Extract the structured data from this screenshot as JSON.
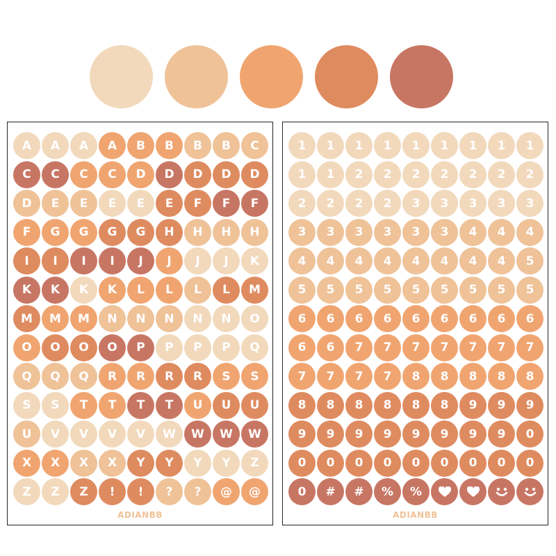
{
  "palette": [
    "#F2D9BC",
    "#EFC298",
    "#F0A571",
    "#DF8B60",
    "#C87664"
  ],
  "brand_color": "#EFC298",
  "letters_sheet": {
    "brand": "ADIANBB",
    "rows": [
      [
        [
          "A",
          1
        ],
        [
          "A",
          1
        ],
        [
          "A",
          1
        ],
        [
          "A",
          3
        ],
        [
          "B",
          3
        ],
        [
          "B",
          3
        ],
        [
          "B",
          2
        ],
        [
          "B",
          2
        ],
        [
          "C",
          2
        ]
      ],
      [
        [
          "C",
          5
        ],
        [
          "C",
          5
        ],
        [
          "C",
          3
        ],
        [
          "C",
          3
        ],
        [
          "D",
          3
        ],
        [
          "D",
          5
        ],
        [
          "D",
          4
        ],
        [
          "D",
          4
        ],
        [
          "D",
          4
        ]
      ],
      [
        [
          "D",
          2
        ],
        [
          "E",
          2
        ],
        [
          "E",
          2
        ],
        [
          "E",
          1
        ],
        [
          "E",
          1
        ],
        [
          "E",
          4
        ],
        [
          "F",
          4
        ],
        [
          "F",
          5
        ],
        [
          "F",
          5
        ]
      ],
      [
        [
          "F",
          3
        ],
        [
          "G",
          3
        ],
        [
          "G",
          3
        ],
        [
          "G",
          4
        ],
        [
          "G",
          4
        ],
        [
          "H",
          4
        ],
        [
          "H",
          2
        ],
        [
          "H",
          2
        ],
        [
          "H",
          2
        ]
      ],
      [
        [
          "I",
          4
        ],
        [
          "I",
          4
        ],
        [
          "I",
          5
        ],
        [
          "I",
          5
        ],
        [
          "J",
          5
        ],
        [
          "J",
          3
        ],
        [
          "J",
          1
        ],
        [
          "J",
          1
        ],
        [
          "K",
          1
        ]
      ],
      [
        [
          "K",
          5
        ],
        [
          "K",
          5
        ],
        [
          "K",
          1
        ],
        [
          "K",
          3
        ],
        [
          "L",
          3
        ],
        [
          "L",
          3
        ],
        [
          "L",
          2
        ],
        [
          "L",
          4
        ],
        [
          "M",
          4
        ]
      ],
      [
        [
          "M",
          4
        ],
        [
          "M",
          3
        ],
        [
          "M",
          3
        ],
        [
          "N",
          2
        ],
        [
          "N",
          2
        ],
        [
          "N",
          2
        ],
        [
          "N",
          1
        ],
        [
          "N",
          1
        ],
        [
          "O",
          1
        ]
      ],
      [
        [
          "O",
          3
        ],
        [
          "O",
          4
        ],
        [
          "O",
          4
        ],
        [
          "O",
          5
        ],
        [
          "P",
          5
        ],
        [
          "P",
          1
        ],
        [
          "P",
          1
        ],
        [
          "P",
          1
        ],
        [
          "Q",
          1
        ]
      ],
      [
        [
          "Q",
          2
        ],
        [
          "Q",
          2
        ],
        [
          "Q",
          2
        ],
        [
          "R",
          3
        ],
        [
          "R",
          3
        ],
        [
          "R",
          4
        ],
        [
          "R",
          4
        ],
        [
          "S",
          3
        ],
        [
          "S",
          3
        ]
      ],
      [
        [
          "S",
          1
        ],
        [
          "S",
          1
        ],
        [
          "T",
          3
        ],
        [
          "T",
          3
        ],
        [
          "T",
          5
        ],
        [
          "T",
          5
        ],
        [
          "U",
          3
        ],
        [
          "U",
          4
        ],
        [
          "U",
          4
        ]
      ],
      [
        [
          "U",
          2
        ],
        [
          "V",
          1
        ],
        [
          "V",
          1
        ],
        [
          "V",
          1
        ],
        [
          "V",
          1
        ],
        [
          "W",
          1
        ],
        [
          "W",
          5
        ],
        [
          "W",
          5
        ],
        [
          "W",
          5
        ]
      ],
      [
        [
          "X",
          3
        ],
        [
          "X",
          3
        ],
        [
          "X",
          2
        ],
        [
          "X",
          2
        ],
        [
          "Y",
          4
        ],
        [
          "Y",
          4
        ],
        [
          "Y",
          1
        ],
        [
          "Y",
          1
        ],
        [
          "Z",
          1
        ]
      ],
      [
        [
          "Z",
          1
        ],
        [
          "Z",
          1
        ],
        [
          "Z",
          4
        ],
        [
          "!",
          4
        ],
        [
          "!",
          4
        ],
        [
          "?",
          2
        ],
        [
          "?",
          2
        ],
        [
          "@",
          3
        ],
        [
          "@",
          3
        ]
      ]
    ]
  },
  "numbers_sheet": {
    "brand": "ADIANBB",
    "rows": [
      [
        [
          "1",
          1
        ],
        [
          "1",
          1
        ],
        [
          "1",
          1
        ],
        [
          "1",
          1
        ],
        [
          "1",
          1
        ],
        [
          "1",
          1
        ],
        [
          "1",
          1
        ],
        [
          "1",
          1
        ],
        [
          "1",
          1
        ]
      ],
      [
        [
          "1",
          1
        ],
        [
          "1",
          1
        ],
        [
          "2",
          1
        ],
        [
          "2",
          1
        ],
        [
          "2",
          1
        ],
        [
          "2",
          1
        ],
        [
          "2",
          1
        ],
        [
          "2",
          1
        ],
        [
          "2",
          1
        ]
      ],
      [
        [
          "2",
          1
        ],
        [
          "2",
          1
        ],
        [
          "2",
          1
        ],
        [
          "2",
          1
        ],
        [
          "3",
          1
        ],
        [
          "3",
          1
        ],
        [
          "3",
          1
        ],
        [
          "3",
          1
        ],
        [
          "3",
          1
        ]
      ],
      [
        [
          "3",
          2
        ],
        [
          "3",
          2
        ],
        [
          "3",
          2
        ],
        [
          "3",
          2
        ],
        [
          "3",
          2
        ],
        [
          "3",
          2
        ],
        [
          "4",
          2
        ],
        [
          "4",
          2
        ],
        [
          "4",
          2
        ]
      ],
      [
        [
          "4",
          2
        ],
        [
          "4",
          2
        ],
        [
          "4",
          2
        ],
        [
          "4",
          2
        ],
        [
          "4",
          2
        ],
        [
          "4",
          2
        ],
        [
          "4",
          2
        ],
        [
          "4",
          2
        ],
        [
          "5",
          2
        ]
      ],
      [
        [
          "5",
          2
        ],
        [
          "5",
          2
        ],
        [
          "5",
          2
        ],
        [
          "5",
          2
        ],
        [
          "5",
          2
        ],
        [
          "5",
          2
        ],
        [
          "5",
          2
        ],
        [
          "5",
          2
        ],
        [
          "5",
          2
        ]
      ],
      [
        [
          "6",
          3
        ],
        [
          "6",
          3
        ],
        [
          "6",
          3
        ],
        [
          "6",
          3
        ],
        [
          "6",
          3
        ],
        [
          "6",
          3
        ],
        [
          "6",
          3
        ],
        [
          "6",
          3
        ],
        [
          "6",
          3
        ]
      ],
      [
        [
          "6",
          3
        ],
        [
          "6",
          3
        ],
        [
          "7",
          3
        ],
        [
          "7",
          3
        ],
        [
          "7",
          3
        ],
        [
          "7",
          3
        ],
        [
          "7",
          3
        ],
        [
          "7",
          3
        ],
        [
          "7",
          3
        ]
      ],
      [
        [
          "7",
          3
        ],
        [
          "7",
          3
        ],
        [
          "7",
          3
        ],
        [
          "7",
          3
        ],
        [
          "8",
          3
        ],
        [
          "8",
          3
        ],
        [
          "8",
          3
        ],
        [
          "8",
          3
        ],
        [
          "8",
          3
        ]
      ],
      [
        [
          "8",
          4
        ],
        [
          "8",
          4
        ],
        [
          "8",
          4
        ],
        [
          "8",
          4
        ],
        [
          "8",
          4
        ],
        [
          "8",
          4
        ],
        [
          "9",
          4
        ],
        [
          "9",
          4
        ],
        [
          "9",
          4
        ]
      ],
      [
        [
          "9",
          4
        ],
        [
          "9",
          4
        ],
        [
          "9",
          4
        ],
        [
          "9",
          4
        ],
        [
          "9",
          4
        ],
        [
          "9",
          4
        ],
        [
          "9",
          4
        ],
        [
          "9",
          4
        ],
        [
          "0",
          4
        ]
      ],
      [
        [
          "0",
          4
        ],
        [
          "0",
          4
        ],
        [
          "0",
          4
        ],
        [
          "0",
          4
        ],
        [
          "0",
          4
        ],
        [
          "0",
          4
        ],
        [
          "0",
          4
        ],
        [
          "0",
          4
        ],
        [
          "0",
          4
        ]
      ],
      [
        [
          "0",
          5
        ],
        [
          "#",
          5
        ],
        [
          "#",
          5
        ],
        [
          "%",
          5
        ],
        [
          "%",
          5
        ],
        [
          "heart-icon",
          5
        ],
        [
          "heart-icon",
          5
        ],
        [
          "smiley-icon",
          5
        ],
        [
          "smiley-icon",
          5
        ]
      ]
    ]
  }
}
